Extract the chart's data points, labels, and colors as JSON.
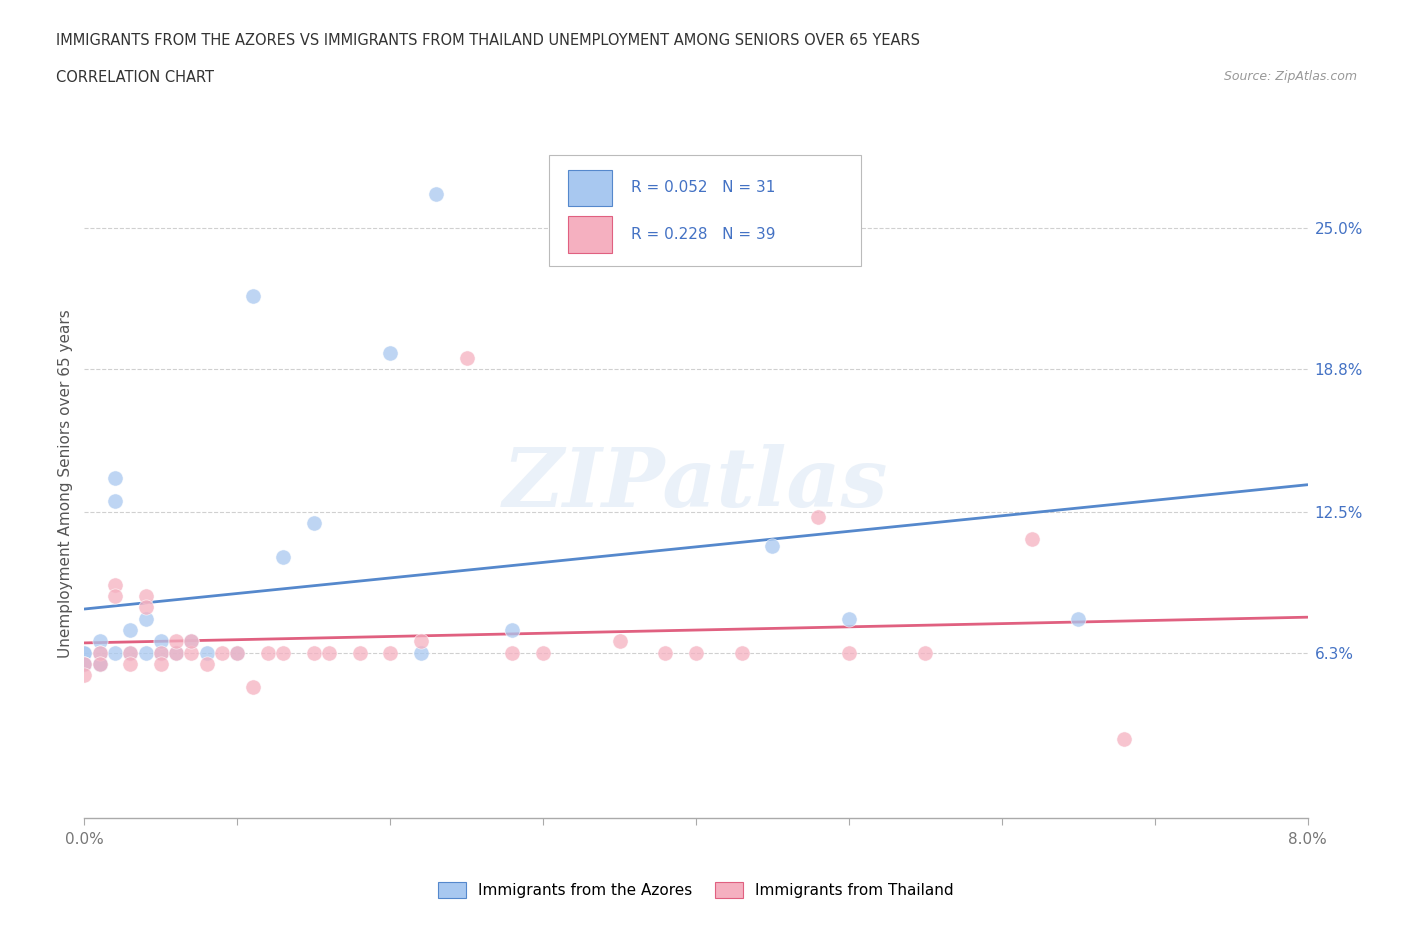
{
  "title_line1": "IMMIGRANTS FROM THE AZORES VS IMMIGRANTS FROM THAILAND UNEMPLOYMENT AMONG SENIORS OVER 65 YEARS",
  "title_line2": "CORRELATION CHART",
  "source_text": "Source: ZipAtlas.com",
  "ylabel": "Unemployment Among Seniors over 65 years",
  "xlim": [
    0.0,
    0.08
  ],
  "ylim": [
    -0.01,
    0.285
  ],
  "y_ticks_right": [
    0.063,
    0.125,
    0.188,
    0.25
  ],
  "y_tick_labels_right": [
    "6.3%",
    "12.5%",
    "18.8%",
    "25.0%"
  ],
  "watermark_text": "ZIPatlas",
  "legend_label1": "Immigrants from the Azores",
  "legend_label2": "Immigrants from Thailand",
  "R1": "0.052",
  "N1": "31",
  "R2": "0.228",
  "N2": "39",
  "color_azores": "#a8c8f0",
  "color_thailand": "#f5b0c0",
  "color_azores_line": "#5588cc",
  "color_thailand_line": "#e06080",
  "color_text_blue": "#4472c4",
  "color_grid": "#d0d0d0",
  "azores_x": [
    0.0,
    0.0,
    0.0,
    0.0,
    0.001,
    0.001,
    0.001,
    0.001,
    0.002,
    0.002,
    0.002,
    0.003,
    0.003,
    0.004,
    0.004,
    0.005,
    0.005,
    0.006,
    0.007,
    0.008,
    0.01,
    0.011,
    0.013,
    0.015,
    0.02,
    0.022,
    0.023,
    0.028,
    0.045,
    0.05,
    0.065
  ],
  "azores_y": [
    0.063,
    0.063,
    0.058,
    0.058,
    0.068,
    0.063,
    0.058,
    0.058,
    0.14,
    0.13,
    0.063,
    0.063,
    0.073,
    0.078,
    0.063,
    0.063,
    0.068,
    0.063,
    0.068,
    0.063,
    0.063,
    0.22,
    0.105,
    0.12,
    0.195,
    0.063,
    0.265,
    0.073,
    0.11,
    0.078,
    0.078
  ],
  "thailand_x": [
    0.0,
    0.0,
    0.001,
    0.001,
    0.002,
    0.002,
    0.003,
    0.003,
    0.004,
    0.004,
    0.005,
    0.005,
    0.006,
    0.006,
    0.007,
    0.007,
    0.008,
    0.009,
    0.01,
    0.011,
    0.012,
    0.013,
    0.015,
    0.016,
    0.018,
    0.02,
    0.022,
    0.025,
    0.028,
    0.03,
    0.035,
    0.038,
    0.04,
    0.043,
    0.048,
    0.05,
    0.055,
    0.062,
    0.068
  ],
  "thailand_y": [
    0.058,
    0.053,
    0.063,
    0.058,
    0.093,
    0.088,
    0.063,
    0.058,
    0.088,
    0.083,
    0.063,
    0.058,
    0.063,
    0.068,
    0.063,
    0.068,
    0.058,
    0.063,
    0.063,
    0.048,
    0.063,
    0.063,
    0.063,
    0.063,
    0.063,
    0.063,
    0.068,
    0.193,
    0.063,
    0.063,
    0.068,
    0.063,
    0.063,
    0.063,
    0.123,
    0.063,
    0.063,
    0.113,
    0.025
  ]
}
